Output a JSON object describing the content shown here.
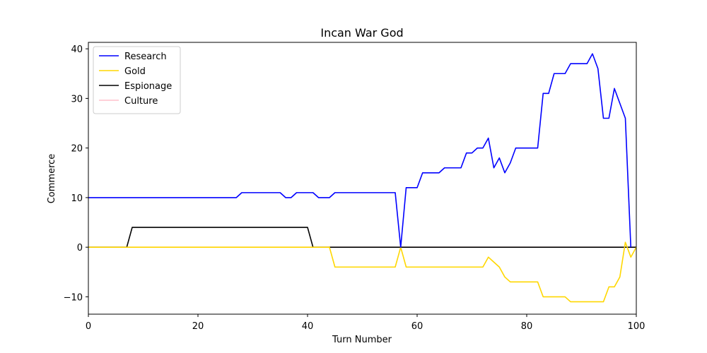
{
  "chart_data": {
    "type": "line",
    "title": "Incan War God",
    "xlabel": "Turn Number",
    "ylabel": "Commerce",
    "xlim": [
      0,
      100
    ],
    "ylim": [
      -13.5,
      41.3
    ],
    "xticks": [
      0,
      20,
      40,
      60,
      80,
      100
    ],
    "yticks": [
      -10,
      0,
      10,
      20,
      30,
      40
    ],
    "grid": false,
    "legend_position": "top-left",
    "series": [
      {
        "name": "Research",
        "color": "#0000ff",
        "points": [
          [
            0,
            10
          ],
          [
            27,
            10
          ],
          [
            28,
            11
          ],
          [
            35,
            11
          ],
          [
            36,
            10
          ],
          [
            37,
            10
          ],
          [
            38,
            11
          ],
          [
            41,
            11
          ],
          [
            42,
            10
          ],
          [
            44,
            10
          ],
          [
            45,
            11
          ],
          [
            56,
            11
          ],
          [
            57,
            0
          ],
          [
            58,
            12
          ],
          [
            60,
            12
          ],
          [
            61,
            15
          ],
          [
            64,
            15
          ],
          [
            65,
            16
          ],
          [
            68,
            16
          ],
          [
            69,
            19
          ],
          [
            70,
            19
          ],
          [
            71,
            20
          ],
          [
            72,
            20
          ],
          [
            73,
            22
          ],
          [
            74,
            16
          ],
          [
            75,
            18
          ],
          [
            76,
            15
          ],
          [
            77,
            17
          ],
          [
            78,
            20
          ],
          [
            82,
            20
          ],
          [
            83,
            31
          ],
          [
            84,
            31
          ],
          [
            85,
            35
          ],
          [
            87,
            35
          ],
          [
            88,
            37
          ],
          [
            91,
            37
          ],
          [
            92,
            39
          ],
          [
            93,
            36
          ],
          [
            94,
            26
          ],
          [
            95,
            26
          ],
          [
            96,
            32
          ],
          [
            97,
            29
          ],
          [
            98,
            26
          ],
          [
            99,
            0
          ]
        ]
      },
      {
        "name": "Gold",
        "color": "#ffd700",
        "points": [
          [
            0,
            0
          ],
          [
            44,
            0
          ],
          [
            45,
            -4
          ],
          [
            56,
            -4
          ],
          [
            57,
            0
          ],
          [
            58,
            -4
          ],
          [
            72,
            -4
          ],
          [
            73,
            -2
          ],
          [
            74,
            -3
          ],
          [
            75,
            -4
          ],
          [
            76,
            -6
          ],
          [
            77,
            -7
          ],
          [
            82,
            -7
          ],
          [
            83,
            -10
          ],
          [
            87,
            -10
          ],
          [
            88,
            -11
          ],
          [
            94,
            -11
          ],
          [
            95,
            -8
          ],
          [
            96,
            -8
          ],
          [
            97,
            -6
          ],
          [
            98,
            1
          ],
          [
            99,
            -2
          ],
          [
            100,
            0
          ]
        ]
      },
      {
        "name": "Espionage",
        "color": "#000000",
        "points": [
          [
            0,
            0
          ],
          [
            7,
            0
          ],
          [
            8,
            4
          ],
          [
            40,
            4
          ],
          [
            41,
            0
          ],
          [
            100,
            0
          ]
        ]
      },
      {
        "name": "Culture",
        "color": "#ffc0cb",
        "points": [
          [
            0,
            0
          ],
          [
            100,
            0
          ]
        ]
      }
    ]
  }
}
